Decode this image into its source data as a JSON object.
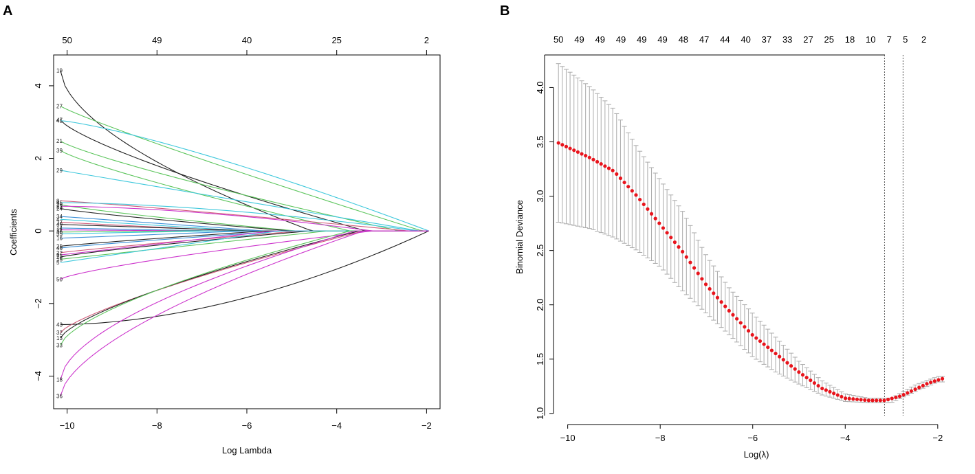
{
  "chart_data": [
    {
      "panel_label": "A",
      "type": "line",
      "xlabel": "Log Lambda",
      "ylabel": "Coefficients",
      "xlim": [
        -10.3,
        -1.7
      ],
      "ylim": [
        -4.9,
        4.85
      ],
      "xticks": [
        -10,
        -8,
        -6,
        -4,
        -2
      ],
      "xtick_labels": [
        "−10",
        "−8",
        "−6",
        "−4",
        "−2"
      ],
      "yticks": [
        -4,
        -2,
        0,
        2,
        4
      ],
      "ytick_labels": [
        "−4",
        "−2",
        "0",
        "2",
        "4"
      ],
      "top_axis": {
        "positions": [
          -10,
          -8,
          -6,
          -4,
          -2
        ],
        "labels": [
          "50",
          "49",
          "40",
          "25",
          "2"
        ]
      },
      "x_end": -1.95,
      "series": [
        {
          "name": "19",
          "color": "#222222",
          "start": 4.42,
          "zero_at": -4.55,
          "shape": 1.7
        },
        {
          "name": "27",
          "color": "#5cc55c",
          "start": 3.44,
          "zero_at": -2.1,
          "shape": 1.1
        },
        {
          "name": "47",
          "color": "#222222",
          "start": 3.06,
          "zero_at": -3.35,
          "shape": 1.3
        },
        {
          "name": "41",
          "color": "#3ec8dc",
          "start": 3.04,
          "zero_at": -1.95,
          "shape": 0.8
        },
        {
          "name": "21",
          "color": "#5cc55c",
          "start": 2.48,
          "zero_at": -2.6,
          "shape": 1.2
        },
        {
          "name": "39",
          "color": "#5cc55c",
          "start": 2.22,
          "zero_at": -3.7,
          "shape": 1.2
        },
        {
          "name": "29",
          "color": "#3ec8dc",
          "start": 1.67,
          "zero_at": -2.15,
          "shape": 1.0
        },
        {
          "name": "8",
          "color": "#d05a78",
          "start": 0.83,
          "zero_at": -2.4,
          "shape": 0.9
        },
        {
          "name": "45",
          "color": "#3ec8dc",
          "start": 0.78,
          "zero_at": -2.2,
          "shape": 0.6
        },
        {
          "name": "26",
          "color": "#5cc55c",
          "start": 0.73,
          "zero_at": -4.9,
          "shape": 1.2
        },
        {
          "name": "23",
          "color": "#cc33cc",
          "start": 0.68,
          "zero_at": -3.2,
          "shape": 0.6
        },
        {
          "name": "24",
          "color": "#222222",
          "start": 0.62,
          "zero_at": -5.0,
          "shape": 1.2
        },
        {
          "name": "34",
          "color": "#3a8fd8",
          "start": 0.4,
          "zero_at": -5.6,
          "shape": 1.0
        },
        {
          "name": "4",
          "color": "#3ec8dc",
          "start": 0.32,
          "zero_at": -6.0,
          "shape": 1.0
        },
        {
          "name": "17",
          "color": "#d05a78",
          "start": 0.24,
          "zero_at": -6.3,
          "shape": 1.0
        },
        {
          "name": "49",
          "color": "#222222",
          "start": 0.18,
          "zero_at": -5.8,
          "shape": 1.0
        },
        {
          "name": "14",
          "color": "#3a8fd8",
          "start": 0.08,
          "zero_at": -6.6,
          "shape": 1.0
        },
        {
          "name": "11",
          "color": "#cc33cc",
          "start": 0.03,
          "zero_at": -7.0,
          "shape": 1.0
        },
        {
          "name": "30",
          "color": "#5cc55c",
          "start": -0.03,
          "zero_at": -7.4,
          "shape": 1.0
        },
        {
          "name": "35",
          "color": "#3ec8dc",
          "start": -0.08,
          "zero_at": -6.8,
          "shape": 1.0
        },
        {
          "name": "16",
          "color": "#3a8fd8",
          "start": -0.2,
          "zero_at": -6.0,
          "shape": 1.0
        },
        {
          "name": "25",
          "color": "#222222",
          "start": -0.42,
          "zero_at": -5.6,
          "shape": 1.1
        },
        {
          "name": "46",
          "color": "#3a8fd8",
          "start": -0.47,
          "zero_at": -5.2,
          "shape": 1.1
        },
        {
          "name": "22",
          "color": "#d05a78",
          "start": -0.6,
          "zero_at": -4.8,
          "shape": 1.1
        },
        {
          "name": "3",
          "color": "#cc33cc",
          "start": -0.66,
          "zero_at": -5.4,
          "shape": 1.0
        },
        {
          "name": "28",
          "color": "#222222",
          "start": -0.72,
          "zero_at": -4.6,
          "shape": 1.2
        },
        {
          "name": "15",
          "color": "#5cc55c",
          "start": -0.78,
          "zero_at": -4.2,
          "shape": 1.0
        },
        {
          "name": "5",
          "color": "#3ec8dc",
          "start": -0.87,
          "zero_at": -5.3,
          "shape": 1.0
        },
        {
          "name": "50",
          "color": "#cc33cc",
          "start": -1.33,
          "zero_at": -3.2,
          "shape": 1.3
        },
        {
          "name": "43",
          "color": "#222222",
          "start": -2.58,
          "zero_at": -1.95,
          "shape": 0.55
        },
        {
          "name": "32",
          "color": "#d05a78",
          "start": -2.8,
          "zero_at": -3.4,
          "shape": 1.3
        },
        {
          "name": "13",
          "color": "#222222",
          "start": -2.95,
          "zero_at": -3.5,
          "shape": 1.4
        },
        {
          "name": "33",
          "color": "#5cc55c",
          "start": -3.15,
          "zero_at": -3.7,
          "shape": 1.5
        },
        {
          "name": "18",
          "color": "#cc33cc",
          "start": -4.1,
          "zero_at": -3.6,
          "shape": 1.7
        },
        {
          "name": "36",
          "color": "#cc33cc",
          "start": -4.55,
          "zero_at": -3.4,
          "shape": 1.6
        }
      ]
    },
    {
      "panel_label": "B",
      "type": "line",
      "xlabel": "Log(λ)",
      "ylabel": "Binomial Deviance",
      "xlim": [
        -10.5,
        -1.7
      ],
      "ylim": [
        0.98,
        4.3
      ],
      "xticks": [
        -10,
        -8,
        -6,
        -4,
        -2
      ],
      "xtick_labels": [
        "−10",
        "−8",
        "−6",
        "−4",
        "−2"
      ],
      "yticks": [
        1.0,
        1.5,
        2.0,
        2.5,
        3.0,
        3.5,
        4.0
      ],
      "ytick_labels": [
        "1.0",
        "1.5",
        "2.0",
        "2.5",
        "3.0",
        "3.5",
        "4.0"
      ],
      "top_axis": {
        "positions": [
          -10.2,
          -9.75,
          -9.3,
          -8.85,
          -8.4,
          -7.95,
          -7.5,
          -7.05,
          -6.6,
          -6.15,
          -5.7,
          -5.25,
          -4.8,
          -4.35,
          -3.9,
          -3.45,
          -3.05,
          -2.7,
          -2.3
        ],
        "labels": [
          "50",
          "49",
          "49",
          "49",
          "49",
          "49",
          "48",
          "47",
          "44",
          "40",
          "37",
          "33",
          "27",
          "25",
          "18",
          "10",
          "7",
          "5",
          "2"
        ]
      },
      "vlines": [
        -3.15,
        -2.75
      ],
      "point_color": "#e8141c",
      "errorbar_color": "#aaaaaa",
      "curve": {
        "x": [
          -10.2,
          -9.5,
          -9.0,
          -8.5,
          -8.0,
          -7.5,
          -7.0,
          -6.5,
          -6.0,
          -5.5,
          -5.0,
          -4.5,
          -4.0,
          -3.5,
          -3.15,
          -2.8,
          -2.5,
          -2.2,
          -1.9
        ],
        "y": [
          3.49,
          3.35,
          3.23,
          3.0,
          2.74,
          2.48,
          2.18,
          1.94,
          1.72,
          1.55,
          1.38,
          1.23,
          1.14,
          1.12,
          1.12,
          1.16,
          1.22,
          1.28,
          1.32
        ]
      },
      "error": {
        "x": [
          -10.2,
          -9.5,
          -9.0,
          -8.5,
          -8.0,
          -7.5,
          -7.0,
          -6.5,
          -6.0,
          -5.5,
          -5.0,
          -4.5,
          -4.0,
          -3.5,
          -3.0,
          -2.5,
          -2.0
        ],
        "upper": [
          4.22,
          4.0,
          3.8,
          3.45,
          3.15,
          2.85,
          2.45,
          2.15,
          1.92,
          1.7,
          1.48,
          1.3,
          1.18,
          1.14,
          1.14,
          1.26,
          1.34
        ],
        "lower": [
          2.76,
          2.7,
          2.62,
          2.5,
          2.35,
          2.12,
          1.92,
          1.72,
          1.52,
          1.38,
          1.27,
          1.17,
          1.11,
          1.1,
          1.1,
          1.2,
          1.29
        ]
      }
    }
  ]
}
